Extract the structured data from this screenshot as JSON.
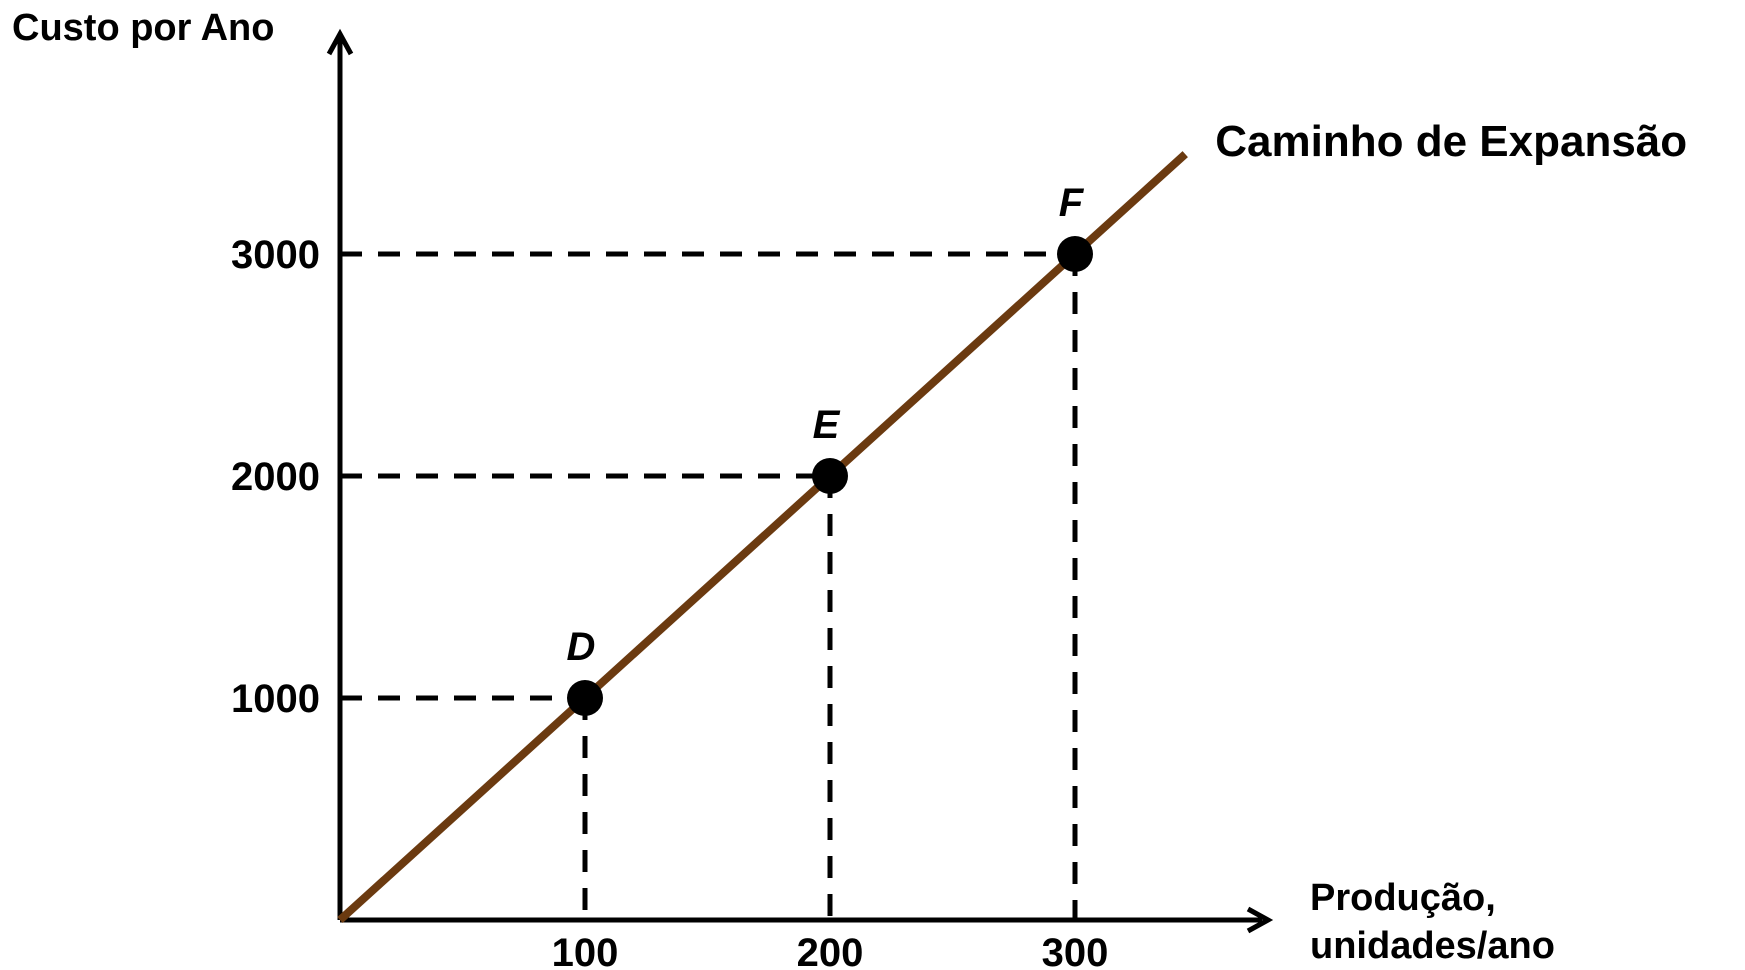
{
  "chart_data": {
    "type": "line",
    "ylabel": "Custo por Ano",
    "xlabel": "Produção, unidades/ano",
    "xlabel_lines": [
      "Produção,",
      "unidades/ano"
    ],
    "xlim": [
      0,
      350
    ],
    "ylim": [
      0,
      4000
    ],
    "xticks": [
      100,
      200,
      300
    ],
    "xtick_labels": [
      "100",
      "200",
      "300"
    ],
    "yticks": [
      1000,
      2000,
      3000
    ],
    "ytick_labels": [
      "1000",
      "2000",
      "3000"
    ],
    "grid": false,
    "series": [
      {
        "name": "Caminho de Expansão",
        "color": "#6b3a10",
        "x": [
          0,
          345
        ],
        "y": [
          0,
          3450
        ]
      }
    ],
    "points": [
      {
        "label": "D",
        "x": 100,
        "y": 1000
      },
      {
        "label": "E",
        "x": 200,
        "y": 2000
      },
      {
        "label": "F",
        "x": 300,
        "y": 3000
      }
    ],
    "point_color": "#000000",
    "axis_color": "#000000"
  }
}
